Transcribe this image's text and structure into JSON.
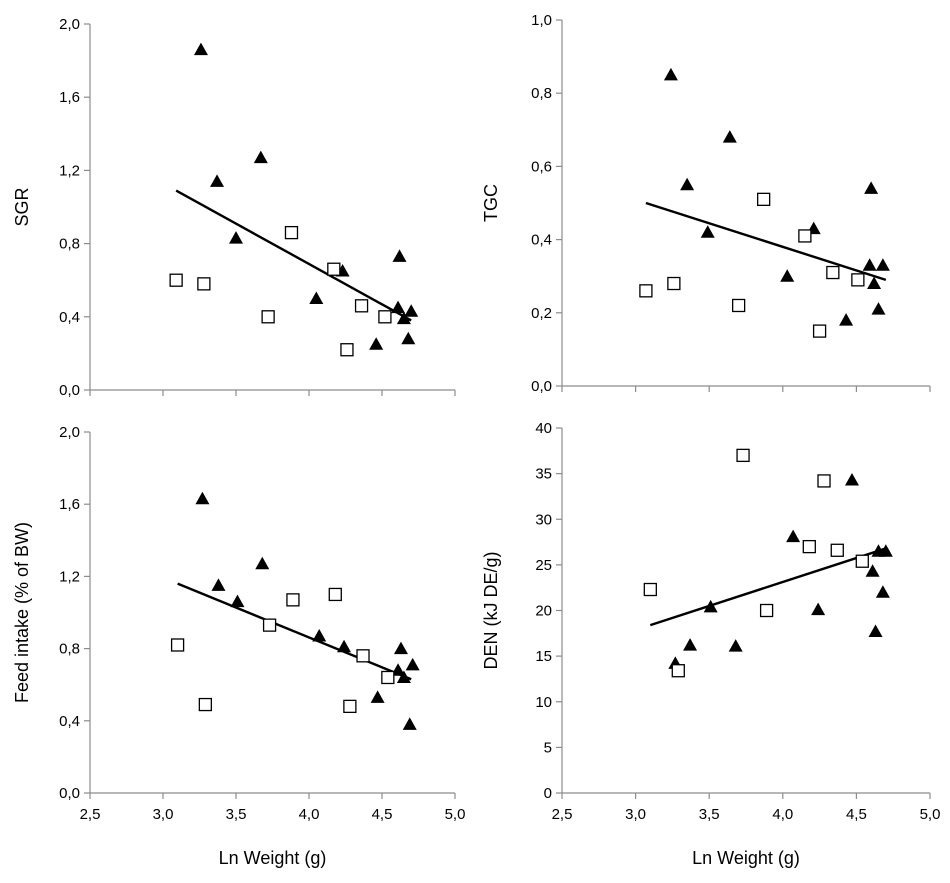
{
  "chart_data": [
    {
      "id": "sgr",
      "type": "scatter",
      "title": "",
      "xlabel": "",
      "ylabel": "SGR",
      "xlim": [
        2.5,
        5.0
      ],
      "ylim": [
        0.0,
        2.0
      ],
      "xticks": [
        "2,5",
        "3,0",
        "3,5",
        "4,0",
        "4,5",
        "5,0"
      ],
      "yticks": [
        "0,0",
        "0,4",
        "0,8",
        "1,2",
        "1,6",
        "2,0"
      ],
      "x_tick_values": [
        2.5,
        3.0,
        3.5,
        4.0,
        4.5,
        5.0
      ],
      "y_tick_values": [
        0.0,
        0.4,
        0.8,
        1.2,
        1.6,
        2.0
      ],
      "show_x_tick_labels": false,
      "grid": false,
      "series": [
        {
          "marker": "filled-triangle",
          "color": "#000000",
          "x": [
            3.26,
            3.37,
            3.5,
            3.67,
            4.05,
            4.23,
            4.46,
            4.61,
            4.62,
            4.65,
            4.68,
            4.7
          ],
          "y": [
            1.86,
            1.14,
            0.83,
            1.27,
            0.5,
            0.65,
            0.25,
            0.45,
            0.73,
            0.39,
            0.28,
            0.43
          ]
        },
        {
          "marker": "open-square",
          "color": "#000000",
          "x": [
            3.09,
            3.28,
            3.72,
            3.88,
            4.17,
            4.36,
            4.26,
            4.52
          ],
          "y": [
            0.6,
            0.58,
            0.4,
            0.86,
            0.66,
            0.46,
            0.22,
            0.4
          ]
        }
      ],
      "trendline": {
        "x": [
          3.09,
          4.7
        ],
        "y": [
          1.09,
          0.38
        ]
      }
    },
    {
      "id": "tgc",
      "type": "scatter",
      "title": "",
      "xlabel": "",
      "ylabel": "TGC",
      "xlim": [
        2.5,
        5.0
      ],
      "ylim": [
        0.0,
        1.0
      ],
      "xticks": [
        "2,5",
        "3,0",
        "3,5",
        "4,0",
        "4,5",
        "5,0"
      ],
      "yticks": [
        "0,0",
        "0,2",
        "0,4",
        "0,6",
        "0,8",
        "1,0"
      ],
      "x_tick_values": [
        2.5,
        3.0,
        3.5,
        4.0,
        4.5,
        5.0
      ],
      "y_tick_values": [
        0.0,
        0.2,
        0.4,
        0.6,
        0.8,
        1.0
      ],
      "show_x_tick_labels": false,
      "grid": false,
      "series": [
        {
          "marker": "filled-triangle",
          "color": "#000000",
          "x": [
            3.24,
            3.35,
            3.49,
            3.64,
            4.03,
            4.21,
            4.43,
            4.59,
            4.6,
            4.62,
            4.65,
            4.68
          ],
          "y": [
            0.85,
            0.55,
            0.42,
            0.68,
            0.3,
            0.43,
            0.18,
            0.33,
            0.54,
            0.28,
            0.21,
            0.33
          ]
        },
        {
          "marker": "open-square",
          "color": "#000000",
          "x": [
            3.07,
            3.26,
            3.7,
            3.87,
            4.15,
            4.34,
            4.25,
            4.51
          ],
          "y": [
            0.26,
            0.28,
            0.22,
            0.51,
            0.41,
            0.31,
            0.15,
            0.29
          ]
        }
      ],
      "trendline": {
        "x": [
          3.07,
          4.7
        ],
        "y": [
          0.5,
          0.29
        ]
      }
    },
    {
      "id": "feed-intake",
      "type": "scatter",
      "title": "",
      "xlabel": "Ln Weight (g)",
      "ylabel": "Feed intake (% of BW)",
      "xlim": [
        2.5,
        5.0
      ],
      "ylim": [
        0.0,
        2.0
      ],
      "xticks": [
        "2,5",
        "3,0",
        "3,5",
        "4,0",
        "4,5",
        "5,0"
      ],
      "yticks": [
        "0,0",
        "0,4",
        "0,8",
        "1,2",
        "1,6",
        "2,0"
      ],
      "x_tick_values": [
        2.5,
        3.0,
        3.5,
        4.0,
        4.5,
        5.0
      ],
      "y_tick_values": [
        0.0,
        0.4,
        0.8,
        1.2,
        1.6,
        2.0
      ],
      "show_x_tick_labels": true,
      "grid": false,
      "series": [
        {
          "marker": "filled-triangle",
          "color": "#000000",
          "x": [
            3.27,
            3.38,
            3.51,
            3.68,
            4.07,
            4.24,
            4.47,
            4.61,
            4.63,
            4.65,
            4.69,
            4.71
          ],
          "y": [
            1.63,
            1.15,
            1.06,
            1.27,
            0.87,
            0.81,
            0.53,
            0.68,
            0.8,
            0.64,
            0.38,
            0.71
          ]
        },
        {
          "marker": "open-square",
          "color": "#000000",
          "x": [
            3.1,
            3.29,
            3.73,
            3.89,
            4.18,
            4.37,
            4.28,
            4.54
          ],
          "y": [
            0.82,
            0.49,
            0.93,
            1.07,
            1.1,
            0.76,
            0.48,
            0.64
          ]
        }
      ],
      "trendline": {
        "x": [
          3.1,
          4.7
        ],
        "y": [
          1.16,
          0.63
        ]
      }
    },
    {
      "id": "den",
      "type": "scatter",
      "title": "",
      "xlabel": "Ln Weight (g)",
      "ylabel": "DEN (kJ DE/g)",
      "xlim": [
        2.5,
        5.0
      ],
      "ylim": [
        0,
        40
      ],
      "xticks": [
        "2,5",
        "3,0",
        "3,5",
        "4,0",
        "4,5",
        "5,0"
      ],
      "yticks": [
        "0",
        "5",
        "10",
        "15",
        "20",
        "25",
        "30",
        "35",
        "40"
      ],
      "x_tick_values": [
        2.5,
        3.0,
        3.5,
        4.0,
        4.5,
        5.0
      ],
      "y_tick_values": [
        0,
        5,
        10,
        15,
        20,
        25,
        30,
        35,
        40
      ],
      "show_x_tick_labels": true,
      "grid": false,
      "series": [
        {
          "marker": "filled-triangle",
          "color": "#000000",
          "x": [
            3.27,
            3.37,
            3.51,
            3.68,
            4.07,
            4.24,
            4.47,
            4.61,
            4.63,
            4.65,
            4.68,
            4.7
          ],
          "y": [
            14.2,
            16.2,
            20.4,
            16.1,
            28.1,
            20.1,
            34.3,
            24.3,
            17.7,
            26.5,
            22.0,
            26.5
          ]
        },
        {
          "marker": "open-square",
          "color": "#000000",
          "x": [
            3.1,
            3.29,
            3.73,
            3.89,
            4.18,
            4.28,
            4.37,
            4.54
          ],
          "y": [
            22.3,
            13.4,
            37.0,
            20.0,
            27.0,
            34.2,
            26.6,
            25.4
          ]
        }
      ],
      "trendline": {
        "x": [
          3.1,
          4.7
        ],
        "y": [
          18.4,
          26.8
        ]
      }
    }
  ]
}
